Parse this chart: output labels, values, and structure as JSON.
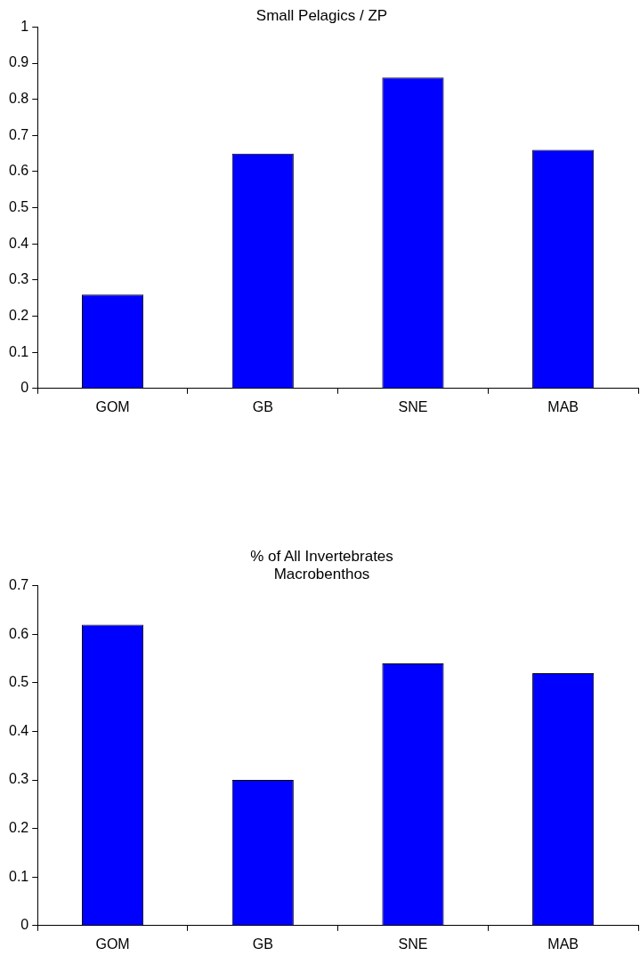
{
  "chart_data": [
    {
      "type": "bar",
      "title": "Small Pelagics / ZP",
      "categories": [
        "GOM",
        "GB",
        "SNE",
        "MAB"
      ],
      "values": [
        0.26,
        0.65,
        0.86,
        0.66
      ],
      "color": "#0000ff",
      "ylim": [
        0,
        1
      ],
      "yticks": [
        0,
        0.1,
        0.2,
        0.3,
        0.4,
        0.5,
        0.6,
        0.7,
        0.8,
        0.9,
        1
      ],
      "grid": false,
      "legend": false
    },
    {
      "type": "bar",
      "title": "% of All Invertebrates",
      "subtitle": "Macrobenthos",
      "categories": [
        "GOM",
        "GB",
        "SNE",
        "MAB"
      ],
      "values": [
        0.62,
        0.3,
        0.54,
        0.52
      ],
      "color": "#0000ff",
      "ylim": [
        0,
        0.7
      ],
      "yticks": [
        0,
        0.1,
        0.2,
        0.3,
        0.4,
        0.5,
        0.6,
        0.7
      ],
      "grid": false,
      "legend": false
    }
  ]
}
